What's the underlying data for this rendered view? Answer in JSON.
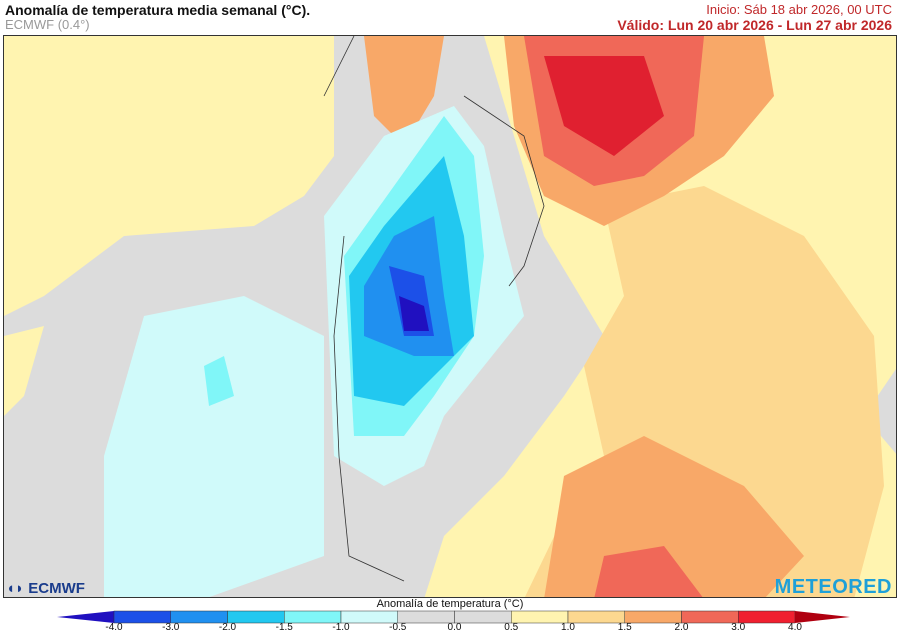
{
  "header": {
    "title": "Anomalía de temperatura media semanal (°C).",
    "model": "ECMWF (0.4°)",
    "init": "Inicio: Sáb 18 abr 2026, 00 UTC",
    "valid": "Válido: Lun 20 abr 2026 - Lun 27 abr 2026"
  },
  "logos": {
    "left": "ECMWF",
    "right": "METEORED"
  },
  "colorbar": {
    "title": "Anomalía de temperatura (°C)",
    "ticks": [
      "-4.0",
      "-3.0",
      "-2.0",
      "-1.5",
      "-1.0",
      "-0.5",
      "0.0",
      "0.5",
      "1.0",
      "1.5",
      "2.0",
      "3.0",
      "4.0"
    ],
    "colors": [
      "#1c50e8",
      "#2090f0",
      "#22c8f0",
      "#80f6f8",
      "#d0fafa",
      "#dcdcdc",
      "#dcdcdc",
      "#fff4b0",
      "#fcd890",
      "#f8a868",
      "#f06858",
      "#f02030"
    ],
    "under_color": "#2010c0",
    "over_color": "#b00010"
  },
  "map": {
    "region": "South America / South Atlantic",
    "palette": {
      "gray": "#dcdcdc",
      "yellow": "#fff4b0",
      "orange": "#fcd890",
      "darkorange": "#f8a868",
      "red": "#f06858",
      "deepred": "#e02030",
      "cyan": "#d0fafa",
      "c2": "#80f6f8",
      "c3": "#22c8f0",
      "blue": "#2090f0",
      "dblue": "#1c50e8",
      "navy": "#2010c0"
    }
  }
}
